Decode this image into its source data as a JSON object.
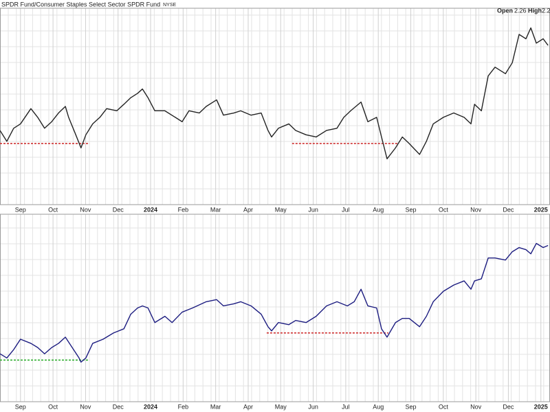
{
  "header": {
    "title": "SPDR Fund/Consumer Staples Select Sector SPDR Fund",
    "exchange": "NYSE",
    "open_label": "Open",
    "open": "2.26",
    "high_label": "High",
    "high": "2.2"
  },
  "chart_data": [
    {
      "type": "line",
      "xlim": [
        0.37,
        17.28
      ],
      "ylim": [
        1.5,
        2.4
      ],
      "xticks": [
        {
          "value": 1,
          "label": "Sep"
        },
        {
          "value": 2,
          "label": "Oct"
        },
        {
          "value": 3,
          "label": "Nov"
        },
        {
          "value": 4,
          "label": "Dec"
        },
        {
          "value": 5,
          "label": "2024"
        },
        {
          "value": 6,
          "label": "Feb"
        },
        {
          "value": 7,
          "label": "Mar"
        },
        {
          "value": 8,
          "label": "Apr"
        },
        {
          "value": 9,
          "label": "May"
        },
        {
          "value": 10,
          "label": "Jun"
        },
        {
          "value": 11,
          "label": "Jul"
        },
        {
          "value": 12,
          "label": "Aug"
        },
        {
          "value": 13,
          "label": "Sep"
        },
        {
          "value": 14,
          "label": "Oct"
        },
        {
          "value": 15,
          "label": "Nov"
        },
        {
          "value": 16,
          "label": "Dec"
        },
        {
          "value": 17,
          "label": "2025"
        }
      ],
      "x": [
        0.37,
        0.58,
        0.79,
        1.0,
        1.32,
        1.53,
        1.74,
        1.96,
        2.17,
        2.38,
        2.48,
        2.7,
        2.86,
        3.01,
        3.22,
        3.44,
        3.65,
        3.96,
        4.18,
        4.39,
        4.6,
        4.75,
        4.92,
        5.13,
        5.44,
        5.76,
        5.97,
        6.18,
        6.5,
        6.71,
        7.03,
        7.24,
        7.56,
        7.77,
        8.09,
        8.4,
        8.61,
        8.72,
        8.93,
        9.25,
        9.46,
        9.78,
        10.09,
        10.41,
        10.73,
        10.94,
        11.15,
        11.47,
        11.68,
        11.95,
        12.1,
        12.27,
        12.53,
        12.74,
        12.95,
        13.27,
        13.48,
        13.69,
        14.0,
        14.32,
        14.64,
        14.85,
        14.96,
        15.17,
        15.38,
        15.59,
        15.91,
        16.12,
        16.33,
        16.54,
        16.69,
        16.86,
        17.07,
        17.22
      ],
      "series": [
        {
          "color": "#222222",
          "values": [
            1.84,
            1.79,
            1.85,
            1.87,
            1.94,
            1.9,
            1.85,
            1.88,
            1.92,
            1.95,
            1.9,
            1.82,
            1.76,
            1.82,
            1.87,
            1.9,
            1.94,
            1.93,
            1.96,
            1.99,
            2.01,
            2.03,
            1.99,
            1.93,
            1.93,
            1.9,
            1.88,
            1.93,
            1.92,
            1.95,
            1.98,
            1.91,
            1.92,
            1.93,
            1.91,
            1.92,
            1.84,
            1.81,
            1.85,
            1.87,
            1.84,
            1.82,
            1.81,
            1.84,
            1.85,
            1.9,
            1.93,
            1.97,
            1.88,
            1.9,
            1.81,
            1.71,
            1.76,
            1.81,
            1.78,
            1.73,
            1.79,
            1.87,
            1.9,
            1.92,
            1.9,
            1.87,
            1.96,
            1.93,
            2.09,
            2.13,
            2.1,
            2.15,
            2.28,
            2.26,
            2.31,
            2.24,
            2.26,
            2.23
          ]
        }
      ],
      "levels": [
        {
          "value": 1.78,
          "x": [
            0.37,
            3.12
          ],
          "color": "#cc2222"
        },
        {
          "value": 1.78,
          "x": [
            9.35,
            12.59
          ],
          "color": "#cc2222"
        }
      ],
      "grid": true
    },
    {
      "type": "line",
      "xlim": [
        0.37,
        17.28
      ],
      "ylim": [
        1.0,
        1.9
      ],
      "xticks": [
        {
          "value": 1,
          "label": "Sep"
        },
        {
          "value": 2,
          "label": "Oct"
        },
        {
          "value": 3,
          "label": "Nov"
        },
        {
          "value": 4,
          "label": "Dec"
        },
        {
          "value": 5,
          "label": "2024"
        },
        {
          "value": 6,
          "label": "Feb"
        },
        {
          "value": 7,
          "label": "Mar"
        },
        {
          "value": 8,
          "label": "Apr"
        },
        {
          "value": 9,
          "label": "May"
        },
        {
          "value": 10,
          "label": "Jun"
        },
        {
          "value": 11,
          "label": "Jul"
        },
        {
          "value": 12,
          "label": "Aug"
        },
        {
          "value": 13,
          "label": "Sep"
        },
        {
          "value": 14,
          "label": "Oct"
        },
        {
          "value": 15,
          "label": "Nov"
        },
        {
          "value": 16,
          "label": "Dec"
        },
        {
          "value": 17,
          "label": "2025"
        }
      ],
      "x": [
        0.37,
        0.58,
        0.79,
        1.0,
        1.32,
        1.53,
        1.74,
        1.96,
        2.17,
        2.38,
        2.59,
        2.8,
        2.86,
        3.01,
        3.22,
        3.54,
        3.86,
        4.18,
        4.39,
        4.6,
        4.75,
        4.92,
        5.13,
        5.44,
        5.66,
        5.97,
        6.29,
        6.71,
        7.03,
        7.24,
        7.56,
        7.77,
        8.09,
        8.4,
        8.61,
        8.72,
        8.93,
        9.25,
        9.46,
        9.78,
        10.09,
        10.41,
        10.73,
        11.05,
        11.26,
        11.47,
        11.68,
        11.95,
        12.1,
        12.27,
        12.53,
        12.74,
        12.95,
        13.27,
        13.48,
        13.69,
        14.0,
        14.32,
        14.64,
        14.85,
        14.96,
        15.17,
        15.38,
        15.59,
        15.91,
        16.12,
        16.33,
        16.54,
        16.69,
        16.86,
        17.07,
        17.22
      ],
      "series": [
        {
          "color": "#1c1c80",
          "values": [
            1.23,
            1.21,
            1.25,
            1.3,
            1.28,
            1.26,
            1.23,
            1.26,
            1.28,
            1.31,
            1.26,
            1.21,
            1.19,
            1.21,
            1.28,
            1.3,
            1.33,
            1.35,
            1.42,
            1.45,
            1.46,
            1.45,
            1.38,
            1.41,
            1.38,
            1.43,
            1.45,
            1.48,
            1.49,
            1.46,
            1.47,
            1.48,
            1.46,
            1.42,
            1.36,
            1.34,
            1.38,
            1.37,
            1.39,
            1.38,
            1.41,
            1.46,
            1.48,
            1.46,
            1.48,
            1.54,
            1.46,
            1.45,
            1.35,
            1.31,
            1.38,
            1.4,
            1.4,
            1.36,
            1.41,
            1.48,
            1.53,
            1.56,
            1.58,
            1.54,
            1.58,
            1.59,
            1.69,
            1.69,
            1.68,
            1.72,
            1.74,
            1.73,
            1.71,
            1.76,
            1.74,
            1.75
          ]
        }
      ],
      "levels": [
        {
          "value": 1.2,
          "x": [
            0.37,
            3.12
          ],
          "color": "#22aa22"
        },
        {
          "value": 1.33,
          "x": [
            8.57,
            12.31
          ],
          "color": "#cc2222"
        }
      ],
      "grid": true
    }
  ]
}
